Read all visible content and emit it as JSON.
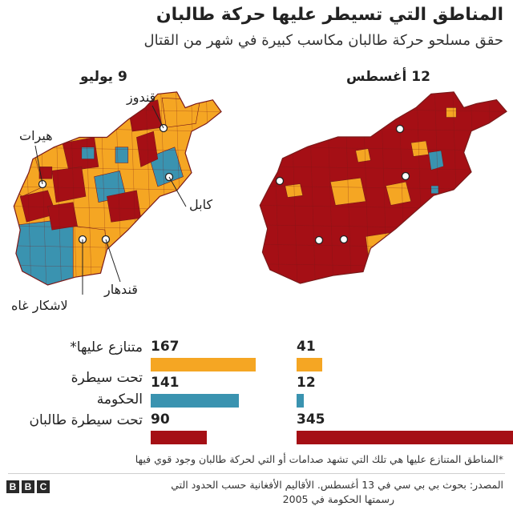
{
  "title": "المناطق التي تسيطر عليها حركة طالبان",
  "subtitle": "حقق مسلحو حركة طالبان مكاسب كبيرة في شهر من القتال",
  "colors": {
    "contested": "#f5a623",
    "government": "#3a93b0",
    "taliban": "#a50f15",
    "border": "#7a1a1a"
  },
  "maps": {
    "july": {
      "heading": "9 يوليو",
      "cities": {
        "herat": "هيرات",
        "kunduz": "قندوز",
        "kabul": "كابل",
        "lashkar_gah": "لاشكار غاه",
        "kandahar": "قندهار"
      }
    },
    "august": {
      "heading": "12 أغسطس"
    }
  },
  "stats": {
    "contested_label": "متنازع عليها*",
    "government_label_1": "تحت سيطرة",
    "government_label_2": "الحكومة",
    "taliban_label": "تحت سيطرة طالبان",
    "july": {
      "contested": 167,
      "government": 141,
      "taliban": 90
    },
    "august": {
      "contested": 41,
      "government": 12,
      "taliban": 345
    }
  },
  "footnote": "*المناطق المتنازع عليها هي تلك التي تشهد صدامات أو التي لحركة طالبان وجود قوي فيها",
  "source_line1": "المصدر: بحوث بي بي سي في 13 أغسطس. الأقاليم الأفغانية حسب الحدود التي",
  "source_line2": "رسمتها الحكومة في 2005",
  "logo_letters": [
    "B",
    "B",
    "C"
  ]
}
